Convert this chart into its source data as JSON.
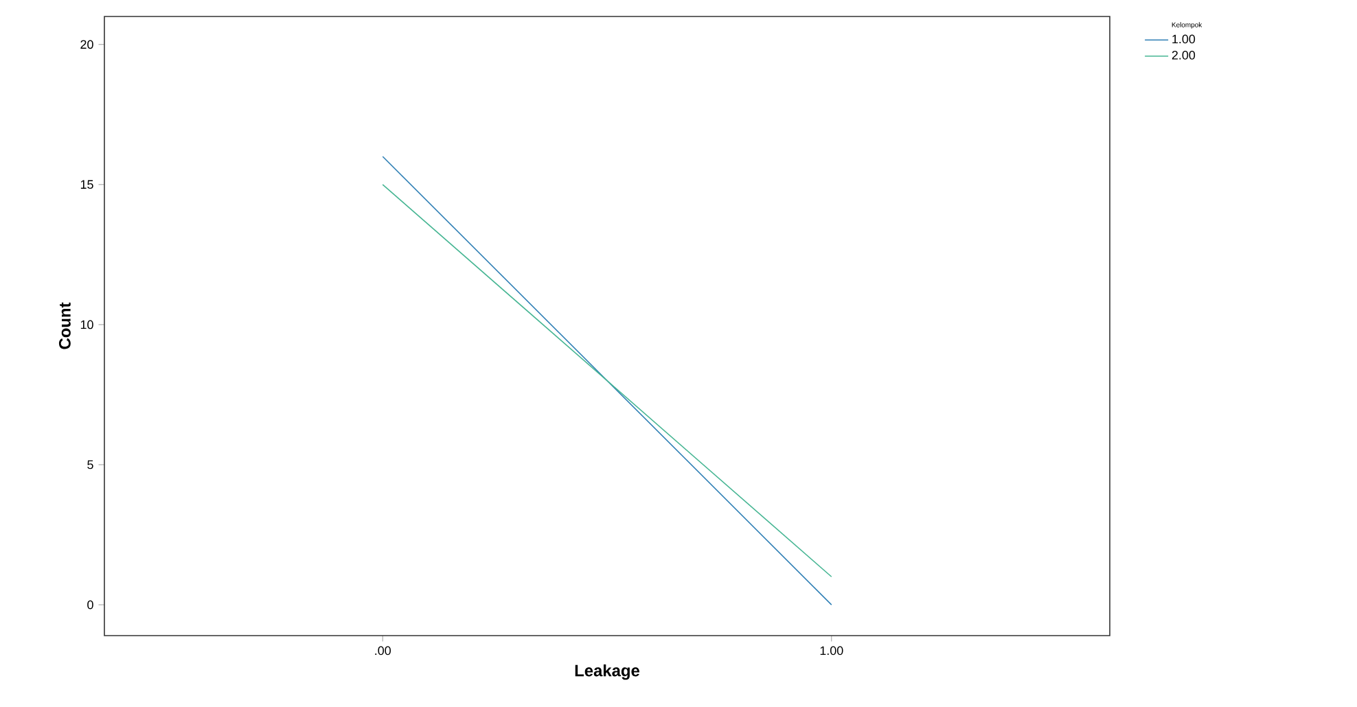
{
  "chart_data": {
    "type": "line",
    "xlabel": "Leakage",
    "ylabel": "Count",
    "legend_title": "Kelompok",
    "categories": [
      ".00",
      "1.00"
    ],
    "series": [
      {
        "name": "1.00",
        "color": "#2f7fb5",
        "values": [
          16,
          0
        ]
      },
      {
        "name": "2.00",
        "color": "#45b592",
        "values": [
          15,
          1
        ]
      }
    ],
    "ylim": [
      -1.1,
      21
    ],
    "yticks": [
      0,
      5,
      10,
      15,
      20
    ],
    "legend": "top right",
    "marker": "none",
    "line_style": "solid",
    "grid": false
  }
}
